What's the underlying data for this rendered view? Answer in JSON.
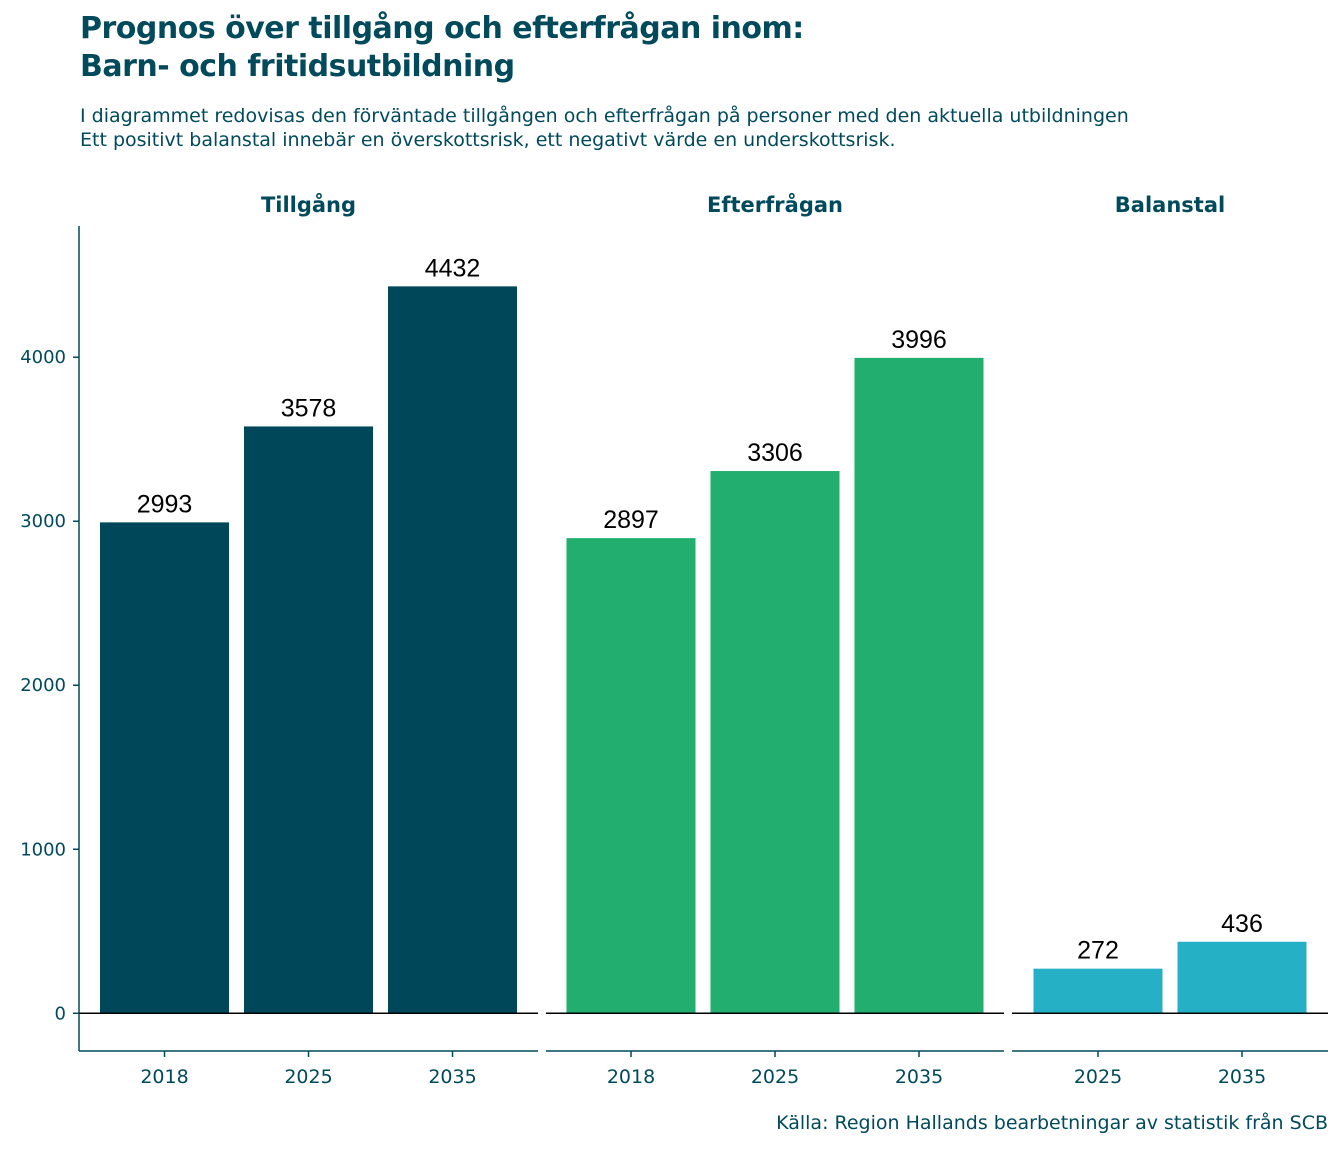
{
  "chart_data": {
    "type": "bar",
    "title_line1": "Prognos över tillgång och efterfrågan inom:",
    "title_line2": "Barn- och fritidsutbildning",
    "subtitle_line1": "I diagrammet redovisas den förväntade tillgången och efterfrågan på personer med den aktuella utbildningen",
    "subtitle_line2": "Ett positivt balanstal innebär en överskottsrisk, ett negativt värde en underskottsrisk.",
    "caption": "Källa: Region Hallands bearbetningar av statistik från SCB",
    "ylim": [
      -230,
      4800
    ],
    "y_ticks": [
      0,
      1000,
      2000,
      3000,
      4000
    ],
    "grid": false,
    "panels": [
      {
        "name": "Tillgång",
        "color": "#00475a",
        "categories": [
          "2018",
          "2025",
          "2035"
        ],
        "values": [
          2993,
          3578,
          4432
        ]
      },
      {
        "name": "Efterfrågan",
        "color": "#22ae6e",
        "categories": [
          "2018",
          "2025",
          "2035"
        ],
        "values": [
          2897,
          3306,
          3996
        ]
      },
      {
        "name": "Balanstal",
        "color": "#26b0c5",
        "categories": [
          "2025",
          "2035"
        ],
        "values": [
          272,
          436
        ]
      }
    ]
  }
}
